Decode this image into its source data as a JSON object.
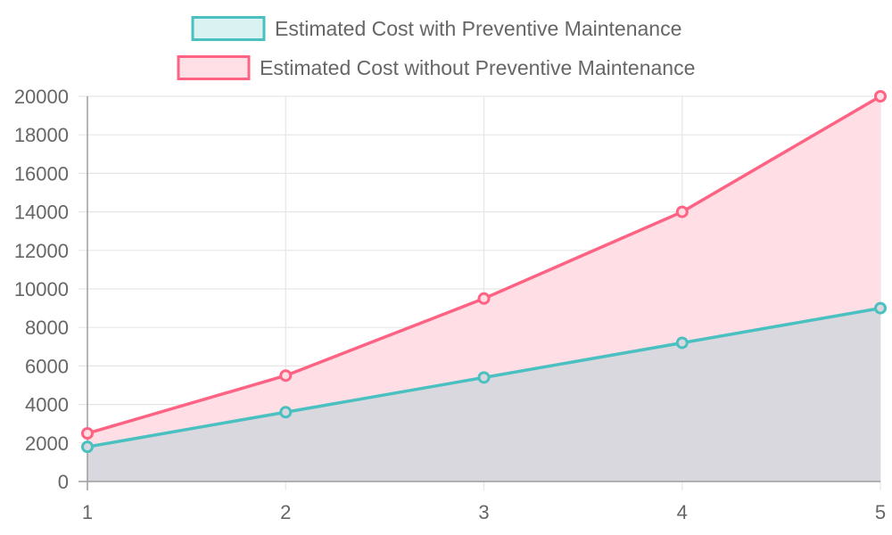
{
  "chart_data": {
    "type": "area",
    "categories": [
      "1",
      "2",
      "3",
      "4",
      "5"
    ],
    "series": [
      {
        "name": "Estimated Cost with Preventive Maintenance",
        "values": [
          1800,
          3600,
          5400,
          7200,
          9000
        ],
        "color": "#4bc0c0",
        "fill": "#d9d8de"
      },
      {
        "name": "Estimated Cost without Preventive Maintenance",
        "values": [
          2500,
          5500,
          9500,
          14000,
          20000
        ],
        "color": "#ff6384",
        "fill": "#ffdfe5"
      }
    ],
    "title": "",
    "xlabel": "",
    "ylabel": "",
    "ylim": [
      0,
      20000
    ],
    "yticks": [
      "0",
      "2000",
      "4000",
      "6000",
      "8000",
      "10000",
      "12000",
      "14000",
      "16000",
      "18000",
      "20000"
    ],
    "grid": true,
    "legend_position": "top"
  }
}
